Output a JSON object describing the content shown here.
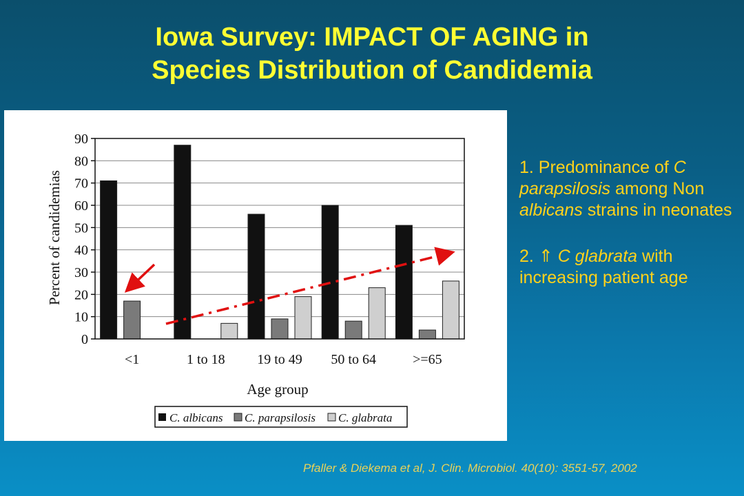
{
  "slide": {
    "title_line1": "Iowa Survey: IMPACT OF AGING in",
    "title_line2": "Species Distribution of Candidemia"
  },
  "notes": {
    "note1": {
      "prefix": "1. Predominance of",
      "species": "C parapsilosis",
      "mid": "among Non",
      "albicans": "albicans",
      "suffix": "strains in neonates"
    },
    "note2": {
      "prefix": "2.",
      "arrow": "⇑",
      "species": "C glabrata",
      "suffix": "with increasing patient age"
    }
  },
  "citation": "Pfaller & Diekema et al, J. Clin. Microbiol. 40(10): 3551-57, 2002",
  "colors": {
    "title": "#ffff33",
    "note_text": "#ffd21a",
    "albicans": "#111111",
    "parapsilosis": "#7a7a7a",
    "glabrata": "#cfcfcf",
    "annotation_red": "#e01010"
  },
  "chart_data": {
    "type": "bar",
    "categories": [
      "<1",
      "1 to 18",
      "19 to 49",
      "50 to 64",
      ">=65"
    ],
    "series": [
      {
        "name": "C. albicans",
        "values": [
          71,
          87,
          56,
          60,
          51
        ]
      },
      {
        "name": "C. parapsilosis",
        "values": [
          17,
          0,
          9,
          8,
          4
        ]
      },
      {
        "name": "C. glabrata",
        "values": [
          0,
          7,
          19,
          23,
          26
        ]
      }
    ],
    "ylim": [
      0,
      90
    ],
    "yticks": [
      "0",
      "10",
      "20",
      "30",
      "40",
      "50",
      "60",
      "70",
      "80",
      "90"
    ],
    "xlabel": "Age group",
    "ylabel": "Percent of candidemias",
    "grid": true,
    "legend": "bottom"
  }
}
